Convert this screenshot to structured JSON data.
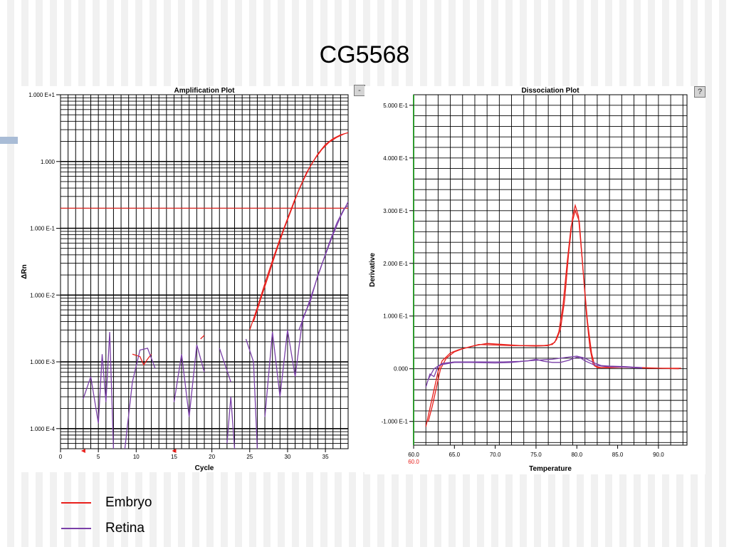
{
  "slide": {
    "title": "CG5568",
    "legend": [
      {
        "label": "Embryo",
        "color": "#e8201c"
      },
      {
        "label": "Retina",
        "color": "#7a3fa8"
      }
    ]
  },
  "chart_data": [
    {
      "type": "line",
      "title": "Amplification Plot",
      "xlabel": "Cycle",
      "ylabel": "ΔRn",
      "yscale": "log",
      "xlim": [
        0,
        38
      ],
      "ylim": [
        5e-05,
        10
      ],
      "x_ticks": [
        0,
        5,
        10,
        15,
        20,
        25,
        30,
        35
      ],
      "x_tick_labels": [
        "0",
        "5",
        "10",
        "15",
        "20",
        "25",
        "30",
        "35"
      ],
      "y_ticks": [
        10,
        1,
        0.1,
        0.01,
        0.001,
        0.0001
      ],
      "y_tick_labels": [
        "1.000 E+1",
        "1.000",
        "1.000 E-1",
        "1.000 E-2",
        "1.000 E-3",
        "1.000 E-4"
      ],
      "grid": true,
      "threshold": {
        "value": 0.2,
        "color": "#e8201c"
      },
      "series": [
        {
          "name": "Embryo",
          "color": "#e8201c",
          "segments": [
            [
              [
                9.5,
                0.0013
              ],
              [
                10.5,
                0.0012
              ],
              [
                11,
                0.0009
              ],
              [
                11.5,
                0.0011
              ],
              [
                12,
                0.0013
              ]
            ],
            [
              [
                18.5,
                0.0022
              ],
              [
                19,
                0.0025
              ]
            ],
            [
              [
                25,
                0.003
              ],
              [
                26,
                0.0065
              ],
              [
                27,
                0.015
              ],
              [
                28,
                0.033
              ],
              [
                29,
                0.07
              ],
              [
                30,
                0.14
              ],
              [
                31,
                0.28
              ],
              [
                32,
                0.5
              ],
              [
                33,
                0.85
              ],
              [
                34,
                1.3
              ],
              [
                35,
                1.8
              ],
              [
                36,
                2.2
              ],
              [
                37,
                2.5
              ],
              [
                38,
                2.7
              ]
            ],
            [
              [
                25.5,
                0.004
              ],
              [
                26.5,
                0.009
              ],
              [
                27.5,
                0.02
              ],
              [
                28.5,
                0.045
              ],
              [
                29.5,
                0.095
              ],
              [
                30.5,
                0.19
              ],
              [
                31.5,
                0.38
              ],
              [
                32.5,
                0.68
              ],
              [
                33.5,
                1.05
              ],
              [
                34.5,
                1.5
              ],
              [
                35.5,
                1.95
              ],
              [
                36.5,
                2.3
              ],
              [
                37.5,
                2.6
              ]
            ]
          ]
        },
        {
          "name": "Retina",
          "color": "#7a3fa8",
          "segments": [
            [
              [
                3,
                0.00028
              ],
              [
                4,
                0.0006
              ],
              [
                5,
                0.00012
              ],
              [
                5.5,
                0.0013
              ],
              [
                6,
                0.00025
              ],
              [
                6.5,
                0.0028
              ],
              [
                7,
                5e-05
              ]
            ],
            [
              [
                8.5,
                5e-05
              ],
              [
                9.5,
                0.0005
              ],
              [
                10.5,
                0.0015
              ],
              [
                11.5,
                0.0016
              ],
              [
                12.5,
                0.0008
              ]
            ],
            [
              [
                15,
                0.00025
              ],
              [
                16,
                0.0013
              ],
              [
                17,
                0.00015
              ],
              [
                18,
                0.0018
              ],
              [
                19,
                0.0007
              ]
            ],
            [
              [
                22,
                6e-05
              ],
              [
                22.5,
                0.0003
              ],
              [
                23,
                5e-05
              ]
            ],
            [
              [
                21,
                0.0016
              ],
              [
                22.5,
                0.0005
              ]
            ],
            [
              [
                24.5,
                0.0022
              ],
              [
                25.5,
                0.001
              ],
              [
                26,
                5e-05
              ]
            ],
            [
              [
                27,
                0.00015
              ],
              [
                28,
                0.0028
              ],
              [
                29,
                0.0003
              ],
              [
                30,
                0.003
              ],
              [
                31,
                0.0006
              ],
              [
                32,
                0.0045
              ],
              [
                33,
                0.008
              ],
              [
                34,
                0.02
              ],
              [
                35,
                0.04
              ],
              [
                36,
                0.08
              ],
              [
                37,
                0.15
              ],
              [
                38,
                0.25
              ]
            ],
            [
              [
                31.5,
                0.003
              ],
              [
                32.5,
                0.006
              ],
              [
                33.5,
                0.013
              ],
              [
                34.5,
                0.028
              ],
              [
                35.5,
                0.06
              ],
              [
                36.5,
                0.12
              ],
              [
                37.5,
                0.2
              ],
              [
                38,
                0.22
              ]
            ]
          ]
        }
      ]
    },
    {
      "type": "line",
      "title": "Dissociation Plot",
      "xlabel": "Temperature",
      "ylabel": "Derivative",
      "xlim": [
        60,
        93.5
      ],
      "ylim": [
        -0.145,
        0.52
      ],
      "x_ticks": [
        60,
        65,
        70,
        75,
        80,
        85,
        90
      ],
      "x_tick_labels": [
        "60.0",
        "65.0",
        "70.0",
        "75.0",
        "80.0",
        "85.0",
        "90.0"
      ],
      "x_marker_label": "60.0",
      "y_ticks": [
        0.5,
        0.4,
        0.3,
        0.2,
        0.1,
        0,
        -0.1
      ],
      "y_tick_labels": [
        "5.000 E-1",
        "4.000 E-1",
        "3.000 E-1",
        "2.000 E-1",
        "1.000 E-1",
        "0.000",
        "-1.000 E-1"
      ],
      "grid": true,
      "series": [
        {
          "name": "Embryo",
          "color": "#e8201c",
          "segments": [
            [
              [
                61.5,
                -0.11
              ],
              [
                62,
                -0.075
              ],
              [
                62.5,
                -0.04
              ],
              [
                63,
                -0.005
              ],
              [
                63.5,
                0.015
              ],
              [
                64.5,
                0.03
              ],
              [
                65.5,
                0.036
              ],
              [
                67,
                0.042
              ],
              [
                68,
                0.046
              ],
              [
                70,
                0.045
              ],
              [
                72,
                0.044
              ],
              [
                74,
                0.044
              ],
              [
                76,
                0.044
              ],
              [
                77,
                0.046
              ],
              [
                77.5,
                0.055
              ],
              [
                78,
                0.075
              ],
              [
                78.5,
                0.13
              ],
              [
                79,
                0.22
              ],
              [
                79.5,
                0.29
              ],
              [
                79.8,
                0.31
              ],
              [
                80.2,
                0.29
              ],
              [
                80.7,
                0.2
              ],
              [
                81.2,
                0.1
              ],
              [
                81.6,
                0.04
              ],
              [
                82,
                0.008
              ],
              [
                82.5,
                0.002
              ],
              [
                84,
                0.002
              ],
              [
                86,
                0.003
              ],
              [
                88,
                0.002
              ],
              [
                90,
                0.001
              ],
              [
                92.5,
                0.0
              ]
            ],
            [
              [
                61.8,
                -0.1
              ],
              [
                62.3,
                -0.07
              ],
              [
                62.8,
                -0.035
              ],
              [
                63.3,
                0.0
              ],
              [
                64,
                0.02
              ],
              [
                65,
                0.032
              ],
              [
                66,
                0.038
              ],
              [
                67.5,
                0.044
              ],
              [
                69,
                0.048
              ],
              [
                71,
                0.046
              ],
              [
                73,
                0.044
              ],
              [
                75,
                0.043
              ],
              [
                76.5,
                0.044
              ],
              [
                77.3,
                0.05
              ],
              [
                77.8,
                0.07
              ],
              [
                78.3,
                0.12
              ],
              [
                78.8,
                0.2
              ],
              [
                79.3,
                0.27
              ],
              [
                79.8,
                0.3
              ],
              [
                80.3,
                0.28
              ],
              [
                80.8,
                0.18
              ],
              [
                81.3,
                0.09
              ],
              [
                81.8,
                0.03
              ],
              [
                82.2,
                0.005
              ],
              [
                83,
                0.002
              ],
              [
                85,
                0.004
              ],
              [
                87,
                0.002
              ],
              [
                89,
                0.001
              ],
              [
                91,
                0.001
              ],
              [
                92.8,
                0.001
              ]
            ]
          ]
        },
        {
          "name": "Retina",
          "color": "#7a3fa8",
          "segments": [
            [
              [
                61.5,
                -0.035
              ],
              [
                62,
                -0.01
              ],
              [
                62.5,
                -0.015
              ],
              [
                63,
                0.005
              ],
              [
                63.5,
                0.008
              ],
              [
                65,
                0.012
              ],
              [
                67,
                0.012
              ],
              [
                70,
                0.011
              ],
              [
                72,
                0.012
              ],
              [
                74,
                0.015
              ],
              [
                75,
                0.018
              ],
              [
                76,
                0.014
              ],
              [
                77,
                0.012
              ],
              [
                78,
                0.012
              ],
              [
                79,
                0.016
              ],
              [
                80,
                0.022
              ],
              [
                80.5,
                0.02
              ],
              [
                81,
                0.015
              ],
              [
                82,
                0.008
              ],
              [
                83,
                0.005
              ],
              [
                84,
                0.004
              ],
              [
                86,
                0.003
              ],
              [
                88,
                0.001
              ]
            ],
            [
              [
                61.8,
                -0.02
              ],
              [
                62.5,
                0.0
              ],
              [
                63.5,
                0.01
              ],
              [
                65,
                0.013
              ],
              [
                68,
                0.013
              ],
              [
                71,
                0.013
              ],
              [
                73,
                0.014
              ],
              [
                75,
                0.016
              ],
              [
                77,
                0.018
              ],
              [
                78,
                0.02
              ],
              [
                79,
                0.022
              ],
              [
                80,
                0.024
              ],
              [
                81,
                0.02
              ],
              [
                82,
                0.012
              ],
              [
                83,
                0.006
              ],
              [
                84,
                0.005
              ],
              [
                86,
                0.004
              ],
              [
                88,
                0.002
              ]
            ]
          ]
        }
      ]
    }
  ]
}
